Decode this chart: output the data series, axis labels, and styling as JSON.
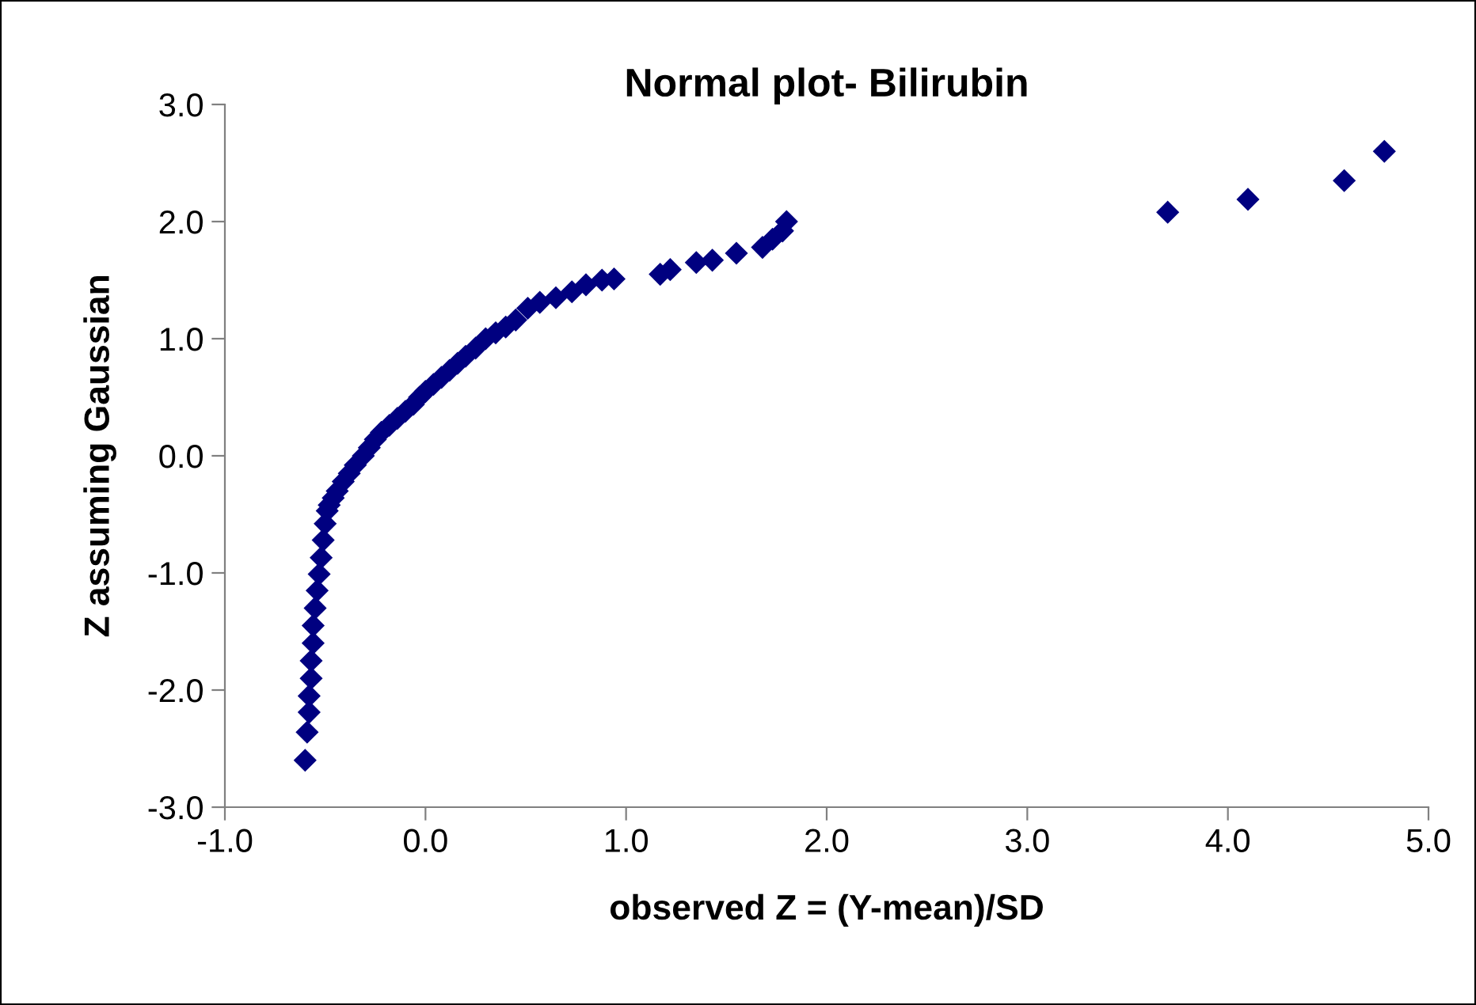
{
  "chart_data": {
    "type": "scatter",
    "title": "Normal plot- Bilirubin",
    "xlabel": "observed Z = (Y-mean)/SD",
    "ylabel": "Z assuming Gaussian",
    "xlim": [
      -1.0,
      5.0
    ],
    "ylim": [
      -3.0,
      3.0
    ],
    "xticks": [
      {
        "value": -1,
        "label": "-1.0"
      },
      {
        "value": 0,
        "label": "0.0"
      },
      {
        "value": 1,
        "label": "1.0"
      },
      {
        "value": 2,
        "label": "2.0"
      },
      {
        "value": 3,
        "label": "3.0"
      },
      {
        "value": 4,
        "label": "4.0"
      },
      {
        "value": 5,
        "label": "5.0"
      }
    ],
    "yticks": [
      {
        "value": -3,
        "label": "-3.0"
      },
      {
        "value": -2,
        "label": "-2.0"
      },
      {
        "value": -1,
        "label": "-1.0"
      },
      {
        "value": 0,
        "label": "0.0"
      },
      {
        "value": 1,
        "label": "1.0"
      },
      {
        "value": 2,
        "label": "2.0"
      },
      {
        "value": 3,
        "label": "3.0"
      }
    ],
    "grid": false,
    "marker": "diamond",
    "series": [
      {
        "color": "#000080",
        "x": [
          -0.6,
          -0.59,
          -0.58,
          -0.58,
          -0.57,
          -0.57,
          -0.56,
          -0.56,
          -0.55,
          -0.54,
          -0.53,
          -0.52,
          -0.51,
          -0.5,
          -0.49,
          -0.48,
          -0.46,
          -0.44,
          -0.41,
          -0.38,
          -0.35,
          -0.31,
          -0.28,
          -0.25,
          -0.22,
          -0.18,
          -0.14,
          -0.1,
          -0.06,
          -0.03,
          0.0,
          0.04,
          0.08,
          0.12,
          0.16,
          0.2,
          0.25,
          0.3,
          0.35,
          0.4,
          0.45,
          0.51,
          0.57,
          0.65,
          0.73,
          0.8,
          0.88,
          0.94,
          1.17,
          1.22,
          1.35,
          1.43,
          1.55,
          1.68,
          1.73,
          1.78,
          1.8,
          3.7,
          4.1,
          4.58,
          4.78
        ],
        "values": [
          -2.6,
          -2.36,
          -2.19,
          -2.05,
          -1.9,
          -1.75,
          -1.6,
          -1.45,
          -1.3,
          -1.15,
          -1.01,
          -0.87,
          -0.72,
          -0.58,
          -0.47,
          -0.42,
          -0.36,
          -0.3,
          -0.22,
          -0.15,
          -0.08,
          0.0,
          0.07,
          0.14,
          0.2,
          0.26,
          0.32,
          0.38,
          0.44,
          0.5,
          0.55,
          0.61,
          0.67,
          0.73,
          0.79,
          0.85,
          0.92,
          1.0,
          1.05,
          1.1,
          1.16,
          1.26,
          1.31,
          1.35,
          1.4,
          1.46,
          1.5,
          1.51,
          1.55,
          1.59,
          1.65,
          1.67,
          1.73,
          1.78,
          1.85,
          1.92,
          2.0,
          2.08,
          2.19,
          2.35,
          2.6
        ]
      }
    ]
  }
}
